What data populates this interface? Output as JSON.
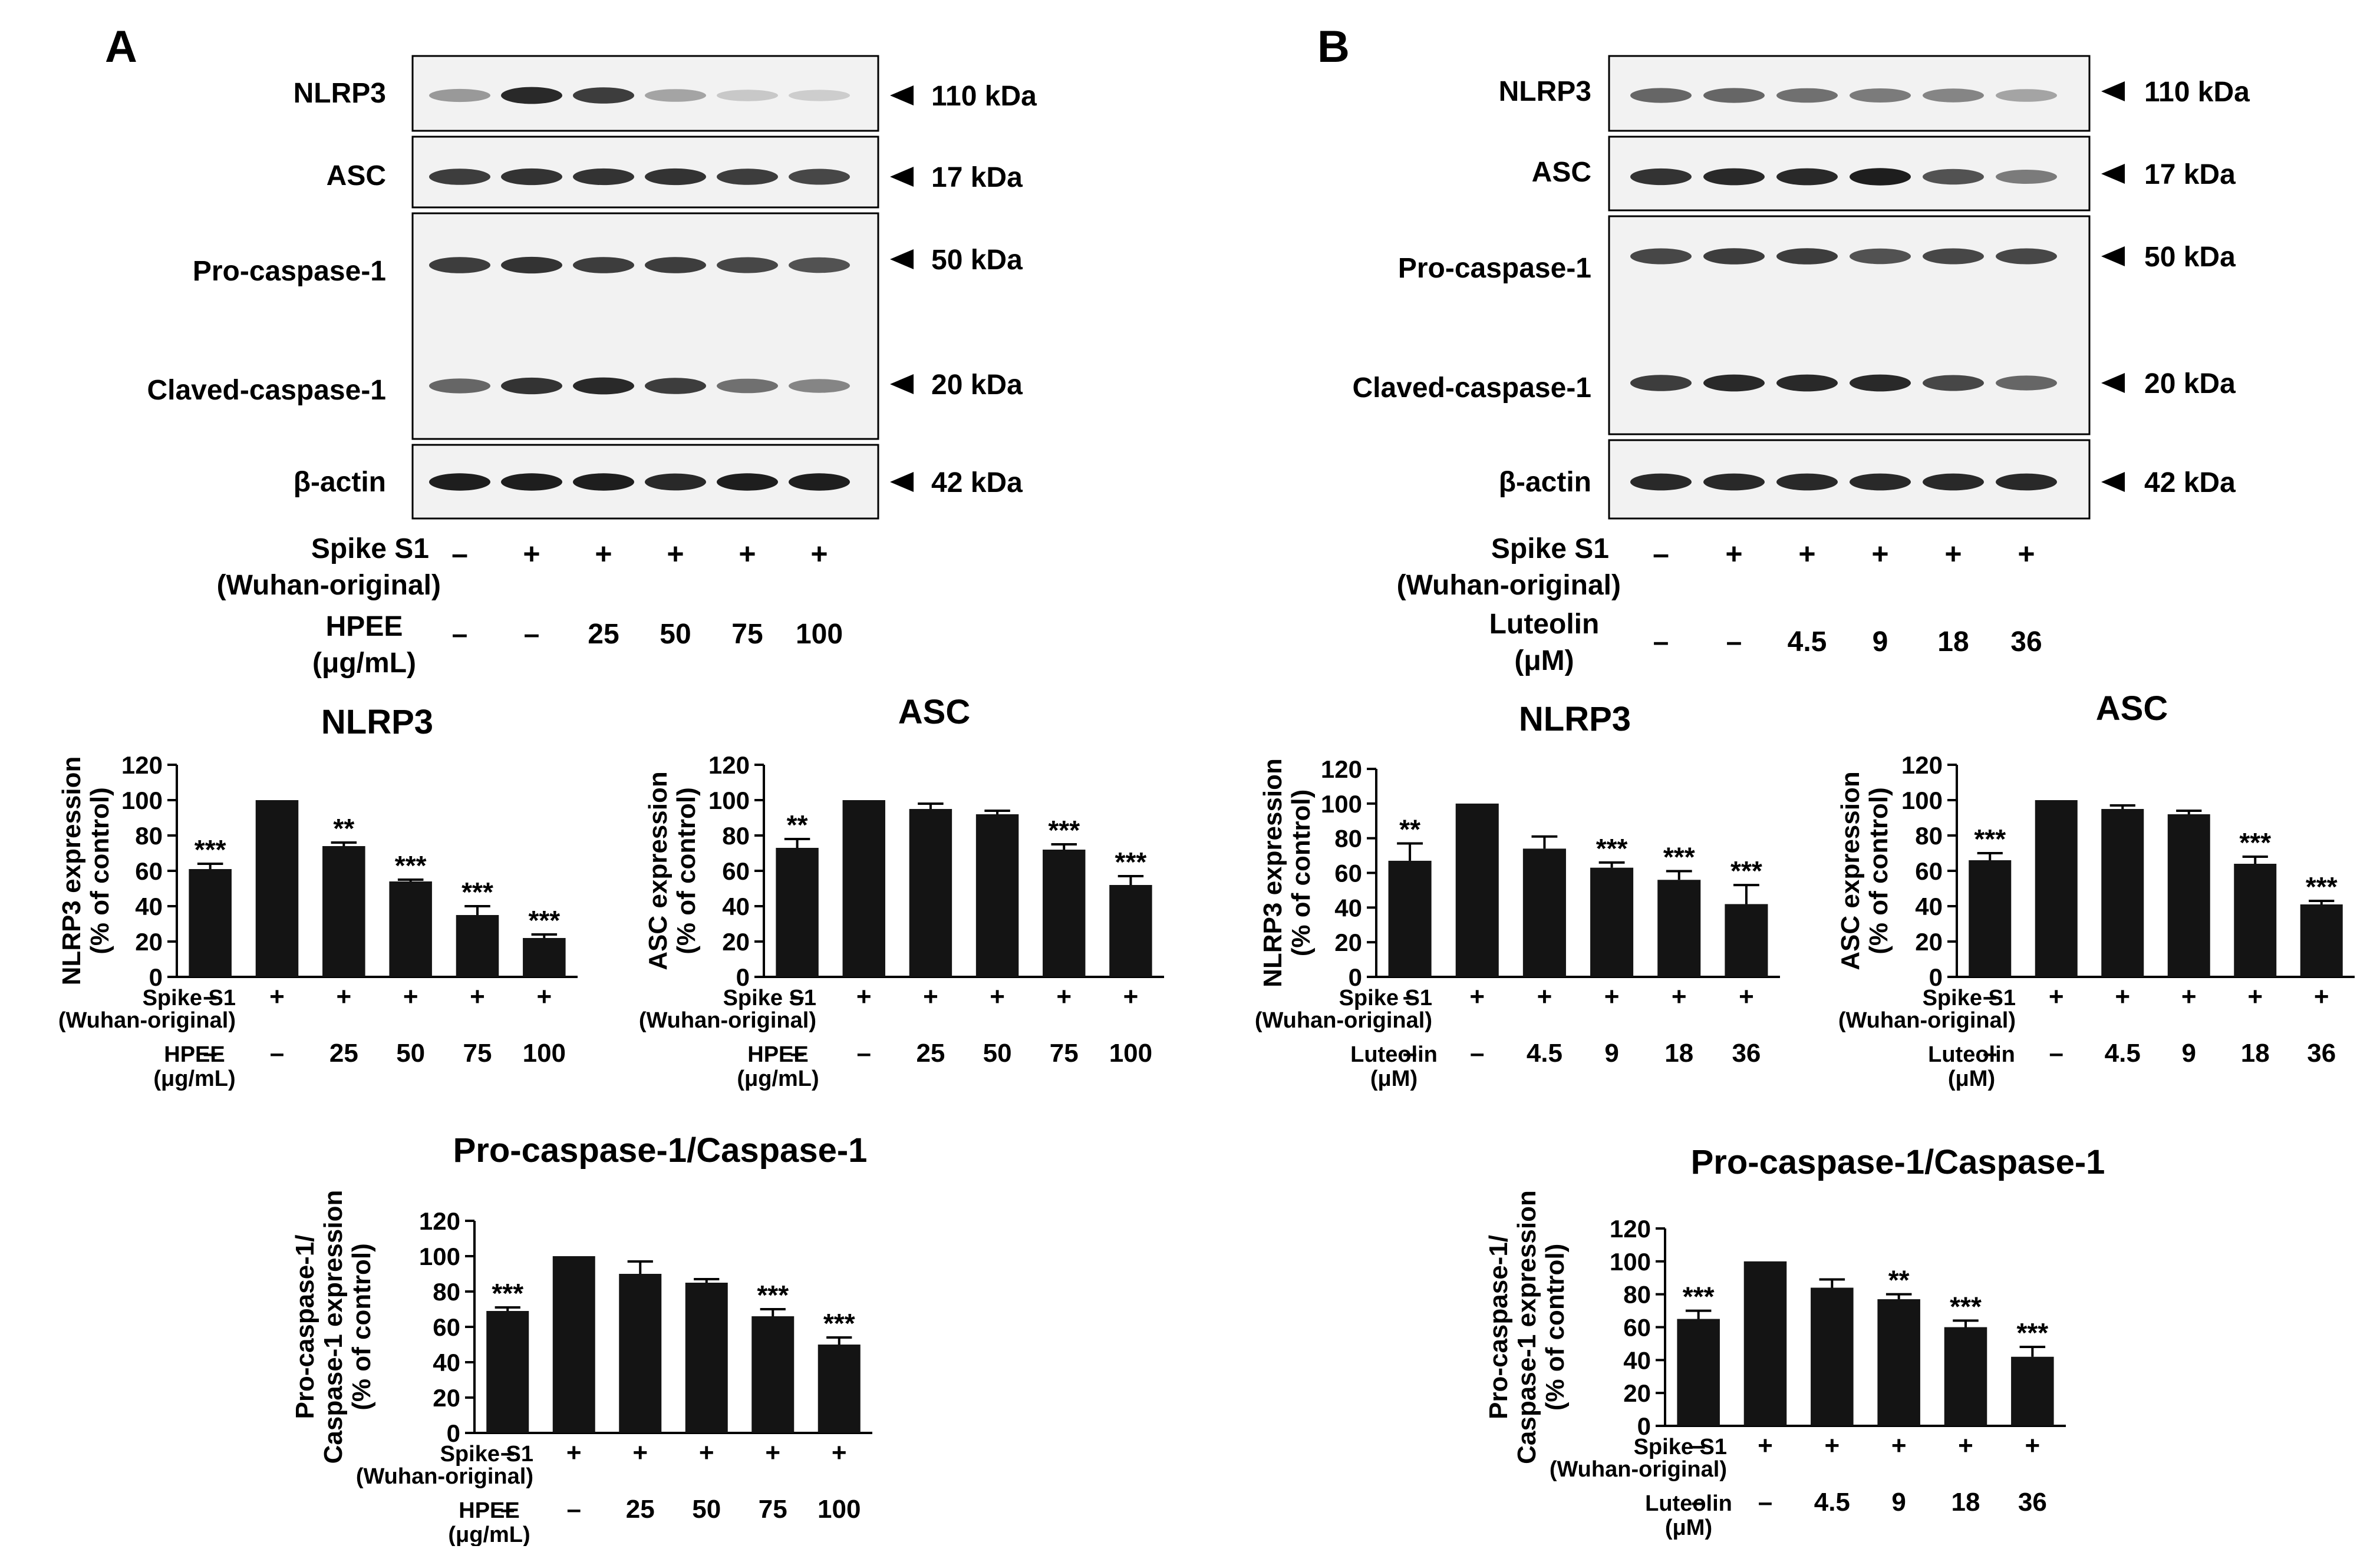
{
  "panels": [
    {
      "letter": "A",
      "blot": {
        "rows": [
          {
            "label": "NLRP3",
            "kda": "110 kDa",
            "intensity": [
              0.35,
              0.9,
              0.8,
              0.3,
              0.12,
              0.1
            ]
          },
          {
            "label": "ASC",
            "kda": "17 kDa",
            "intensity": [
              0.8,
              0.85,
              0.85,
              0.85,
              0.8,
              0.75
            ]
          },
          {
            "label": "Pro-caspase-1",
            "kda": "50 kDa",
            "intensity": [
              0.8,
              0.85,
              0.8,
              0.8,
              0.75,
              0.7
            ]
          },
          {
            "label": "Claved-caspase-1",
            "kda": "20 kDa",
            "intensity": [
              0.6,
              0.85,
              0.9,
              0.8,
              0.55,
              0.45
            ]
          },
          {
            "label": "β-actin",
            "kda": "42 kDa",
            "intensity": [
              0.95,
              0.95,
              0.95,
              0.9,
              0.95,
              0.95
            ]
          }
        ],
        "treat1": {
          "label1": "Spike S1",
          "label2": "(Wuhan-original)",
          "values": [
            "–",
            "+",
            "+",
            "+",
            "+",
            "+"
          ]
        },
        "treat2": {
          "label1": "HPEE",
          "label2": "(μg/mL)",
          "values": [
            "–",
            "–",
            "25",
            "50",
            "75",
            "100"
          ]
        }
      },
      "charts": [
        {
          "title": "NLRP3",
          "ylabel_lines": [
            "NLRP3 expression",
            "(% of control)"
          ],
          "values": [
            61,
            100,
            74,
            54,
            35,
            22
          ],
          "errors": [
            3,
            0,
            2,
            1,
            5,
            2
          ],
          "sig": [
            "***",
            "",
            "**",
            "***",
            "***",
            "***"
          ]
        },
        {
          "title": "ASC",
          "ylabel_lines": [
            "ASC expression",
            "(% of control)"
          ],
          "values": [
            73,
            100,
            95,
            92,
            72,
            52
          ],
          "errors": [
            5,
            0,
            3,
            2,
            3,
            5
          ],
          "sig": [
            "**",
            "",
            "",
            "",
            "***",
            "***"
          ]
        },
        {
          "title": "Pro-caspase-1/Caspase-1",
          "ylabel_lines": [
            "Pro-caspase-1/",
            "Caspase-1 expression",
            "(% of control)"
          ],
          "values": [
            69,
            100,
            90,
            85,
            66,
            50
          ],
          "errors": [
            2,
            0,
            7,
            2,
            4,
            4
          ],
          "sig": [
            "***",
            "",
            "",
            "",
            "***",
            "***"
          ]
        }
      ]
    },
    {
      "letter": "B",
      "blot": {
        "rows": [
          {
            "label": "NLRP3",
            "kda": "110 kDa",
            "intensity": [
              0.6,
              0.6,
              0.55,
              0.5,
              0.45,
              0.3
            ]
          },
          {
            "label": "ASC",
            "kda": "17 kDa",
            "intensity": [
              0.85,
              0.9,
              0.9,
              0.95,
              0.7,
              0.5
            ]
          },
          {
            "label": "Pro-caspase-1",
            "kda": "50 kDa",
            "intensity": [
              0.75,
              0.8,
              0.8,
              0.7,
              0.75,
              0.75
            ]
          },
          {
            "label": "Claved-caspase-1",
            "kda": "20 kDa",
            "intensity": [
              0.8,
              0.9,
              0.9,
              0.9,
              0.75,
              0.6
            ]
          },
          {
            "label": "β-actin",
            "kda": "42 kDa",
            "intensity": [
              0.9,
              0.9,
              0.9,
              0.9,
              0.9,
              0.9
            ]
          }
        ],
        "treat1": {
          "label1": "Spike S1",
          "label2": "(Wuhan-original)",
          "values": [
            "–",
            "+",
            "+",
            "+",
            "+",
            "+"
          ]
        },
        "treat2": {
          "label1": "Luteolin",
          "label2": "(μM)",
          "values": [
            "–",
            "–",
            "4.5",
            "9",
            "18",
            "36"
          ]
        }
      },
      "charts": [
        {
          "title": "NLRP3",
          "ylabel_lines": [
            "NLRP3 expression",
            "(% of control)"
          ],
          "values": [
            67,
            100,
            74,
            63,
            56,
            42
          ],
          "errors": [
            10,
            0,
            7,
            3,
            5,
            11
          ],
          "sig": [
            "**",
            "",
            "",
            "***",
            "***",
            "***"
          ]
        },
        {
          "title": "ASC",
          "ylabel_lines": [
            "ASC expression",
            "(% of control)"
          ],
          "values": [
            66,
            100,
            95,
            92,
            64,
            41
          ],
          "errors": [
            4,
            0,
            2,
            2,
            4,
            2
          ],
          "sig": [
            "***",
            "",
            "",
            "",
            "***",
            "***"
          ]
        },
        {
          "title": "Pro-caspase-1/Caspase-1",
          "ylabel_lines": [
            "Pro-caspase-1/",
            "Caspase-1 expression",
            "(% of control)"
          ],
          "values": [
            65,
            100,
            84,
            77,
            60,
            42
          ],
          "errors": [
            5,
            0,
            5,
            3,
            4,
            6
          ],
          "sig": [
            "***",
            "",
            "",
            "**",
            "***",
            "***"
          ]
        }
      ]
    }
  ],
  "chart_data": [
    {
      "type": "bar",
      "panel": "A",
      "title": "NLRP3",
      "ylabel": "NLRP3 expression (% of control)",
      "ylim": [
        0,
        120
      ],
      "yticks": [
        0,
        20,
        40,
        60,
        80,
        100,
        120
      ],
      "categories": [
        "Spike S1 – / HPEE –",
        "Spike S1 + / HPEE –",
        "Spike S1 + / HPEE 25",
        "Spike S1 + / HPEE 50",
        "Spike S1 + / HPEE 75",
        "Spike S1 + / HPEE 100"
      ],
      "values": [
        61,
        100,
        74,
        54,
        35,
        22
      ],
      "errors": [
        3,
        0,
        2,
        1,
        5,
        2
      ],
      "significance": [
        "***",
        "",
        "**",
        "***",
        "***",
        "***"
      ]
    },
    {
      "type": "bar",
      "panel": "A",
      "title": "ASC",
      "ylabel": "ASC expression (% of control)",
      "ylim": [
        0,
        120
      ],
      "yticks": [
        0,
        20,
        40,
        60,
        80,
        100,
        120
      ],
      "categories": [
        "Spike S1 – / HPEE –",
        "Spike S1 + / HPEE –",
        "Spike S1 + / HPEE 25",
        "Spike S1 + / HPEE 50",
        "Spike S1 + / HPEE 75",
        "Spike S1 + / HPEE 100"
      ],
      "values": [
        73,
        100,
        95,
        92,
        72,
        52
      ],
      "errors": [
        5,
        0,
        3,
        2,
        3,
        5
      ],
      "significance": [
        "**",
        "",
        "",
        "",
        "***",
        "***"
      ]
    },
    {
      "type": "bar",
      "panel": "A",
      "title": "Pro-caspase-1/Caspase-1",
      "ylabel": "Pro-caspase-1/Caspase-1 expression (% of control)",
      "ylim": [
        0,
        120
      ],
      "yticks": [
        0,
        20,
        40,
        60,
        80,
        100,
        120
      ],
      "categories": [
        "Spike S1 – / HPEE –",
        "Spike S1 + / HPEE –",
        "Spike S1 + / HPEE 25",
        "Spike S1 + / HPEE 50",
        "Spike S1 + / HPEE 75",
        "Spike S1 + / HPEE 100"
      ],
      "values": [
        69,
        100,
        90,
        85,
        66,
        50
      ],
      "errors": [
        2,
        0,
        7,
        2,
        4,
        4
      ],
      "significance": [
        "***",
        "",
        "",
        "",
        "***",
        "***"
      ]
    },
    {
      "type": "bar",
      "panel": "B",
      "title": "NLRP3",
      "ylabel": "NLRP3 expression (% of control)",
      "ylim": [
        0,
        120
      ],
      "yticks": [
        0,
        20,
        40,
        60,
        80,
        100,
        120
      ],
      "categories": [
        "Spike S1 – / Luteolin –",
        "Spike S1 + / Luteolin –",
        "Spike S1 + / Luteolin 4.5",
        "Spike S1 + / Luteolin 9",
        "Spike S1 + / Luteolin 18",
        "Spike S1 + / Luteolin 36"
      ],
      "values": [
        67,
        100,
        74,
        63,
        56,
        42
      ],
      "errors": [
        10,
        0,
        7,
        3,
        5,
        11
      ],
      "significance": [
        "**",
        "",
        "",
        "***",
        "***",
        "***"
      ]
    },
    {
      "type": "bar",
      "panel": "B",
      "title": "ASC",
      "ylabel": "ASC expression (% of control)",
      "ylim": [
        0,
        120
      ],
      "yticks": [
        0,
        20,
        40,
        60,
        80,
        100,
        120
      ],
      "categories": [
        "Spike S1 – / Luteolin –",
        "Spike S1 + / Luteolin –",
        "Spike S1 + / Luteolin 4.5",
        "Spike S1 + / Luteolin 9",
        "Spike S1 + / Luteolin 18",
        "Spike S1 + / Luteolin 36"
      ],
      "values": [
        66,
        100,
        95,
        92,
        64,
        41
      ],
      "errors": [
        4,
        0,
        2,
        2,
        4,
        2
      ],
      "significance": [
        "***",
        "",
        "",
        "",
        "***",
        "***"
      ]
    },
    {
      "type": "bar",
      "panel": "B",
      "title": "Pro-caspase-1/Caspase-1",
      "ylabel": "Pro-caspase-1/Caspase-1 expression (% of control)",
      "ylim": [
        0,
        120
      ],
      "yticks": [
        0,
        20,
        40,
        60,
        80,
        100,
        120
      ],
      "categories": [
        "Spike S1 – / Luteolin –",
        "Spike S1 + / Luteolin –",
        "Spike S1 + / Luteolin 4.5",
        "Spike S1 + / Luteolin 9",
        "Spike S1 + / Luteolin 18",
        "Spike S1 + / Luteolin 36"
      ],
      "values": [
        65,
        100,
        84,
        77,
        60,
        42
      ],
      "errors": [
        5,
        0,
        5,
        3,
        4,
        6
      ],
      "significance": [
        "***",
        "",
        "",
        "**",
        "***",
        "***"
      ]
    }
  ]
}
